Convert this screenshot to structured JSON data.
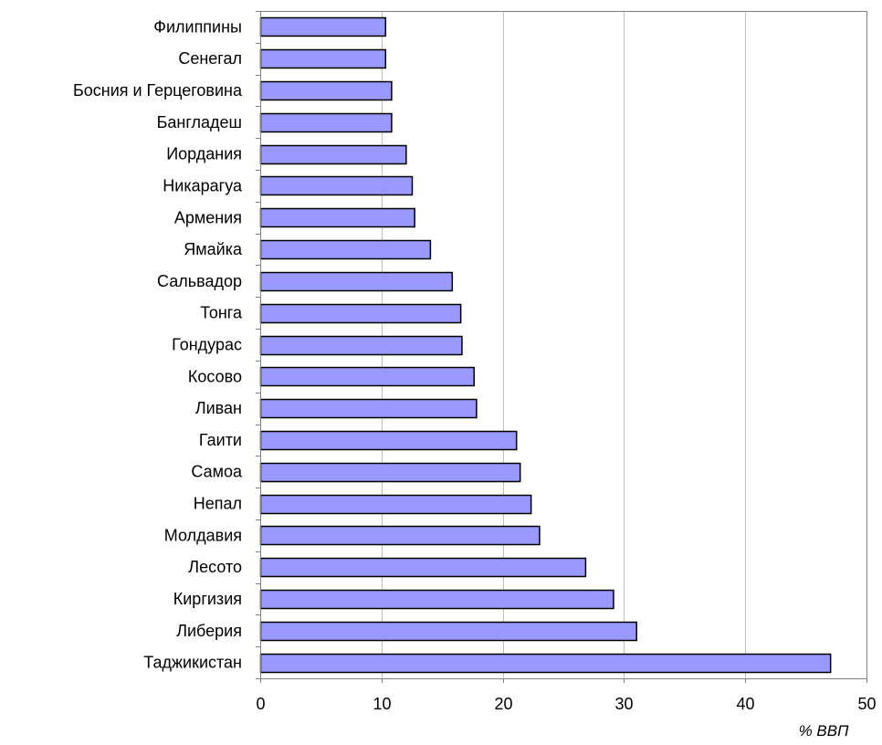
{
  "chart_data": {
    "type": "bar",
    "orientation": "horizontal",
    "categories": [
      "Филиппины",
      "Сенегал",
      "Босния и Герцеговина",
      "Бангладеш",
      "Иордания",
      "Никарагуа",
      "Армения",
      "Ямайка",
      "Сальвадор",
      "Тонга",
      "Гондурас",
      "Косово",
      "Ливан",
      "Гаити",
      "Самоа",
      "Непал",
      "Молдавия",
      "Лесото",
      "Киргизия",
      "Либерия",
      "Таджикистан"
    ],
    "values": [
      10.3,
      10.3,
      10.8,
      10.8,
      12.0,
      12.5,
      12.7,
      14.0,
      15.8,
      16.5,
      16.6,
      17.6,
      17.8,
      21.1,
      21.4,
      22.3,
      23.0,
      26.8,
      29.1,
      31.0,
      47.0
    ],
    "xlabel": "% ВВП",
    "xlim": [
      0,
      50
    ],
    "xticks": [
      0,
      10,
      20,
      30,
      40,
      50
    ],
    "grid": true,
    "colors": {
      "bar_fill": "#9999ff",
      "bar_stroke": "#000000",
      "grid": "#c0c0c0",
      "axis": "#808080"
    }
  }
}
